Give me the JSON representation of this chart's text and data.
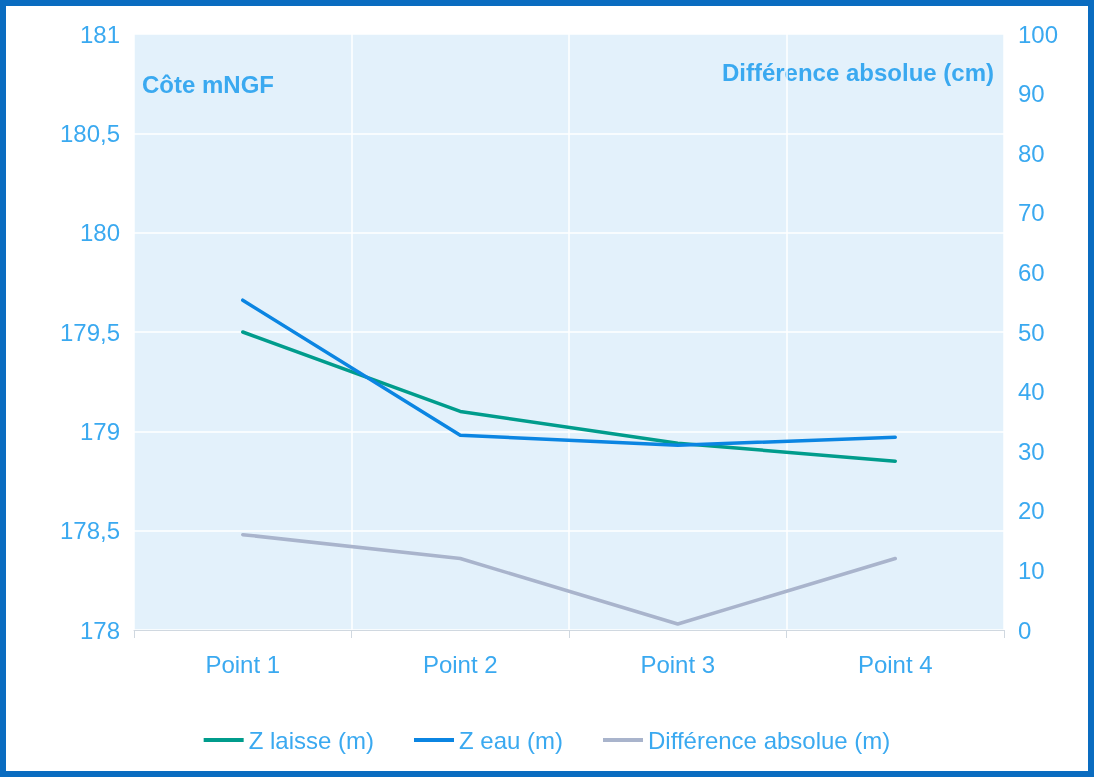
{
  "chart_data": {
    "type": "line",
    "ylabel": "Côte mNGF",
    "y2label": "Différence absolue (cm)",
    "categories": [
      "Point 1",
      "Point 2",
      "Point 3",
      "Point 4"
    ],
    "series": [
      {
        "name": "Z laisse (m)",
        "color": "#009c8c",
        "values": [
          179.5,
          179.1,
          178.94,
          178.85
        ]
      },
      {
        "name": "Z eau (m)",
        "color": "#0b85e2",
        "values": [
          179.66,
          178.98,
          178.93,
          178.97
        ]
      },
      {
        "name": "Différence absolue (m)",
        "color": "#a9b4cc",
        "values": [
          16,
          12,
          1,
          12
        ],
        "axis": "y2"
      }
    ],
    "ylim": [
      178,
      181
    ],
    "yticks": [
      178,
      {
        "value": 178.5,
        "label": "178,5"
      },
      179,
      {
        "value": 179.5,
        "label": "179,5"
      },
      180,
      {
        "value": 180.5,
        "label": "180,5"
      },
      181
    ],
    "y2lim": [
      0,
      100
    ],
    "y2ticks": [
      0,
      10,
      20,
      30,
      40,
      50,
      60,
      70,
      80,
      90,
      100
    ],
    "grid": true,
    "legend": "bottom",
    "marker": "none",
    "line_style": "solid"
  }
}
